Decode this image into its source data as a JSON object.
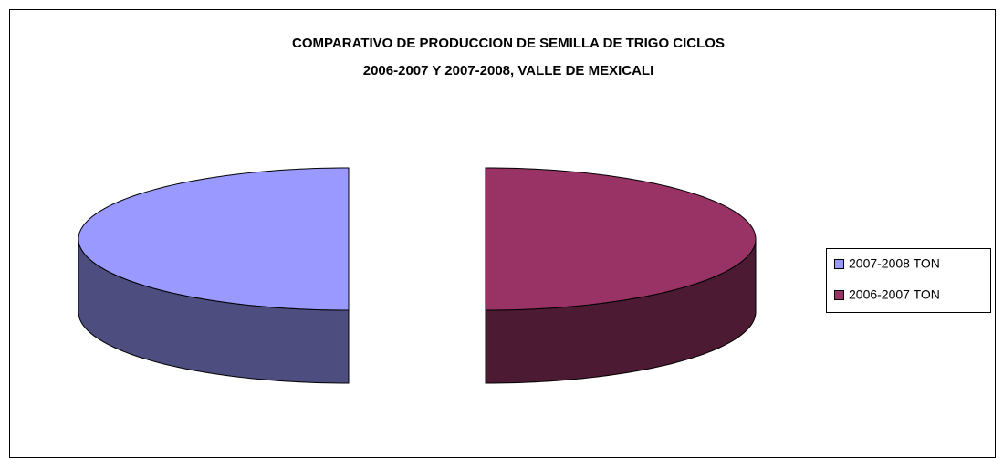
{
  "chart_data": {
    "type": "pie3d",
    "title": [
      "COMPARATIVO DE PRODUCCION DE SEMILLA DE TRIGO CICLOS",
      "2006-2007 Y 2007-2008, VALLE DE MEXICALI"
    ],
    "categories": [
      "2007-2008 TON",
      "2006-2007 TON"
    ],
    "values": [
      50,
      50
    ],
    "colors": [
      "#9999ff",
      "#993366"
    ],
    "side_colors": [
      "#4d4d80",
      "#4d1a33"
    ],
    "legend": "right"
  }
}
